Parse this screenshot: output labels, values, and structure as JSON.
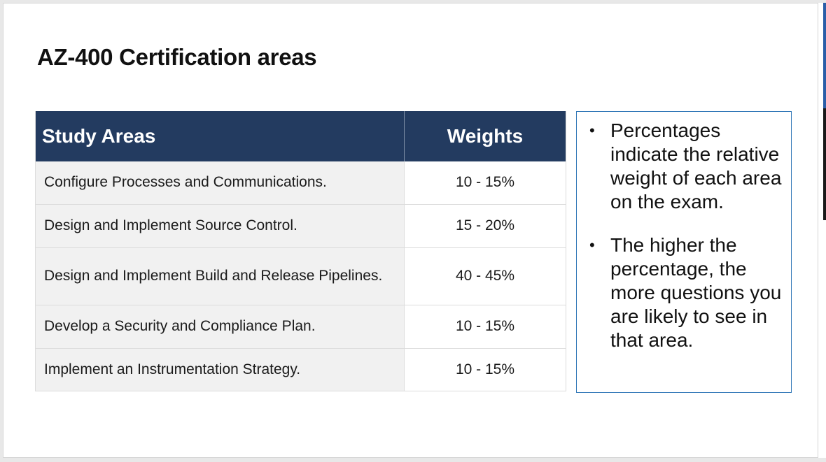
{
  "slide": {
    "title": "AZ-400 Certification areas"
  },
  "table": {
    "headers": {
      "area": "Study Areas",
      "weight": "Weights"
    },
    "rows": [
      {
        "area": "Configure Processes and Communications.",
        "weight": "10 - 15%"
      },
      {
        "area": "Design and Implement Source Control.",
        "weight": "15 - 20%"
      },
      {
        "area": "Design and Implement Build and Release Pipelines.",
        "weight": "40 - 45%"
      },
      {
        "area": "Develop a Security and Compliance Plan.",
        "weight": "10 - 15%"
      },
      {
        "area": "Implement an Instrumentation Strategy.",
        "weight": "10 - 15%"
      }
    ]
  },
  "notes": {
    "items": [
      "Percentages indicate the relative weight of each area on the exam.",
      "The higher the percentage, the more questions you are likely to see in that area."
    ]
  },
  "colors": {
    "header_bg": "#233b60",
    "notes_border": "#2e75b6",
    "area_cell_bg": "#f1f1f1"
  }
}
